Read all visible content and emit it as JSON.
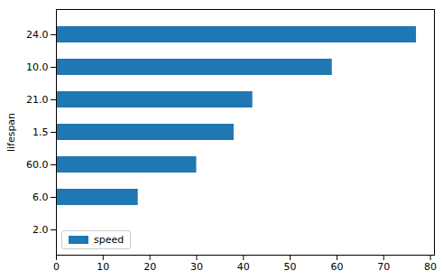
{
  "chart_data": {
    "type": "bar",
    "orientation": "horizontal",
    "categories": [
      "2.0",
      "6.0",
      "60.0",
      "1.5",
      "21.0",
      "10.0",
      "24.0"
    ],
    "series": [
      {
        "name": "speed",
        "color": "#1f77b4",
        "values": [
          0.1,
          17.5,
          30,
          38,
          42,
          59,
          77
        ]
      }
    ],
    "xlim": [
      0,
      80.85
    ],
    "xticks": [
      0,
      10,
      20,
      30,
      40,
      50,
      60,
      70,
      80
    ],
    "ylabel": "lifespan",
    "legend": "lower left"
  }
}
